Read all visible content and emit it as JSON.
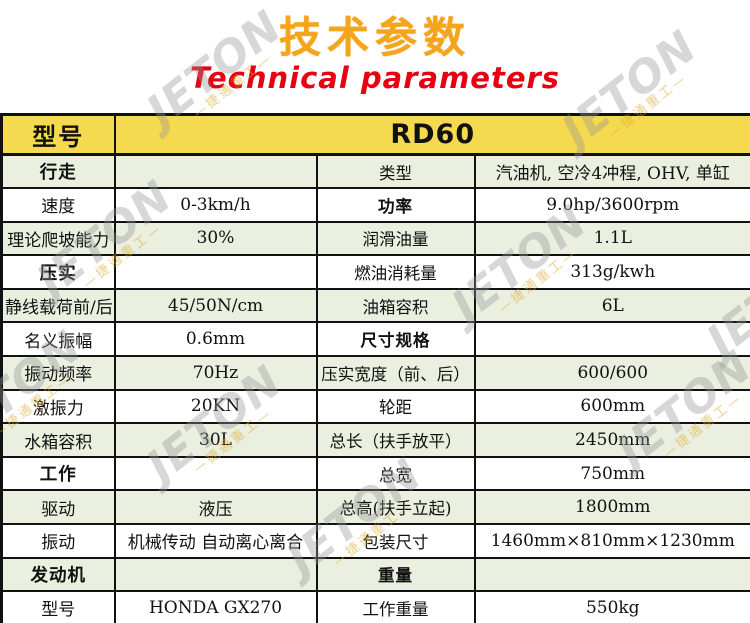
{
  "title": {
    "zh": "技术参数",
    "en": "Technical parameters"
  },
  "colors": {
    "title_orange": "#F5A51B",
    "subtitle_red": "#E60012",
    "header_yellow": "#F5D94E",
    "row_green": "#EAEFDF",
    "border": "#111111"
  },
  "watermark": {
    "text": "JETON",
    "subtext": "—捷通重工—"
  },
  "table": {
    "header": {
      "label": "型号",
      "value": "RD60"
    },
    "rows": [
      {
        "c1": "行走",
        "b1": true,
        "c2": "",
        "c3": "类型",
        "b3": false,
        "c4": "汽油机, 空冷4冲程, OHV, 单缸"
      },
      {
        "c1": "速度",
        "b1": false,
        "c2": "0-3km/h",
        "c3": "功率",
        "b3": true,
        "c4": "9.0hp/3600rpm"
      },
      {
        "c1": "理论爬坡能力",
        "b1": false,
        "c2": "30%",
        "c3": "润滑油量",
        "b3": false,
        "c4": "1.1L"
      },
      {
        "c1": "压实",
        "b1": true,
        "c2": "",
        "c3": "燃油消耗量",
        "b3": false,
        "c4": "313g/kwh"
      },
      {
        "c1": "静线载荷前/后",
        "b1": false,
        "c2": "45/50N/cm",
        "c3": "油箱容积",
        "b3": false,
        "c4": "6L"
      },
      {
        "c1": "名义振幅",
        "b1": false,
        "c2": "0.6mm",
        "c3": "尺寸规格",
        "b3": true,
        "c4": ""
      },
      {
        "c1": "振动频率",
        "b1": false,
        "c2": "70Hz",
        "c3": "压实宽度（前、后）",
        "b3": false,
        "c4": "600/600"
      },
      {
        "c1": "激振力",
        "b1": false,
        "c2": "20KN",
        "c3": "轮距",
        "b3": false,
        "c4": "600mm"
      },
      {
        "c1": "水箱容积",
        "b1": false,
        "c2": "30L",
        "c3": "总长（扶手放平）",
        "b3": false,
        "c4": "2450mm"
      },
      {
        "c1": "工作",
        "b1": true,
        "c2": "",
        "c3": "总宽",
        "b3": false,
        "c4": "750mm"
      },
      {
        "c1": "驱动",
        "b1": false,
        "c2": "液压",
        "c3": "总高(扶手立起)",
        "b3": false,
        "c4": "1800mm"
      },
      {
        "c1": "振动",
        "b1": false,
        "c2": "机械传动 自动离心离合",
        "c3": "包装尺寸",
        "b3": false,
        "c4": "1460mm×810mm×1230mm"
      },
      {
        "c1": "发动机",
        "b1": true,
        "c2": "",
        "c3": "重量",
        "b3": true,
        "c4": ""
      },
      {
        "c1": "型号",
        "b1": false,
        "c2": "HONDA GX270",
        "c3": "工作重量",
        "b3": false,
        "c4": "550kg"
      }
    ]
  }
}
